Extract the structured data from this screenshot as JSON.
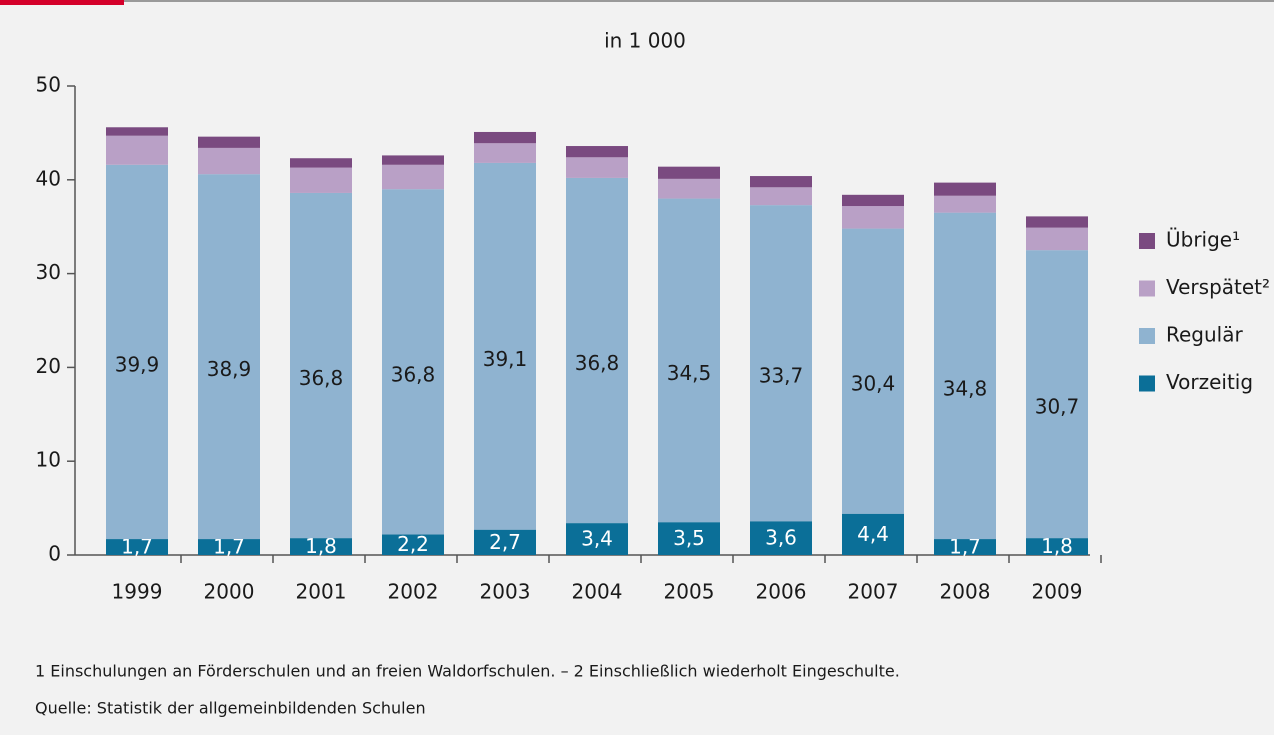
{
  "chart_data": {
    "type": "stacked_bar",
    "title": "in 1 000",
    "categories": [
      "1999",
      "2000",
      "2001",
      "2002",
      "2003",
      "2004",
      "2005",
      "2006",
      "2007",
      "2008",
      "2009"
    ],
    "series": [
      {
        "name": "Vorzeitig",
        "color": "#0b6f98",
        "values": [
          1.7,
          1.7,
          1.8,
          2.2,
          2.7,
          3.4,
          3.5,
          3.6,
          4.4,
          1.7,
          1.8
        ],
        "value_labels": [
          "1,7",
          "1,7",
          "1,8",
          "2,2",
          "2,7",
          "3,4",
          "3,5",
          "3,6",
          "4,4",
          "1,7",
          "1,8"
        ]
      },
      {
        "name": "Regulär",
        "color": "#8fb3d0",
        "values": [
          39.9,
          38.9,
          36.8,
          36.8,
          39.1,
          36.8,
          34.5,
          33.7,
          30.4,
          34.8,
          30.7
        ],
        "value_labels": [
          "39,9",
          "38,9",
          "36,8",
          "36,8",
          "39,1",
          "36,8",
          "34,5",
          "33,7",
          "30,4",
          "34,8",
          "30,7"
        ]
      },
      {
        "name": "Verspätet²",
        "color": "#b9a0c6",
        "values": [
          3.1,
          2.8,
          2.7,
          2.6,
          2.1,
          2.2,
          2.1,
          1.9,
          2.4,
          1.8,
          2.4
        ]
      },
      {
        "name": "Übrige¹",
        "color": "#7a4a80",
        "values": [
          0.9,
          1.2,
          1.0,
          1.0,
          1.2,
          1.2,
          1.3,
          1.2,
          1.2,
          1.4,
          1.2
        ]
      }
    ],
    "ylim": [
      0,
      50
    ],
    "yticks": [
      0,
      10,
      20,
      30,
      40,
      50
    ],
    "footnote": "1 Einschulungen an Förderschulen und an freien Waldorfschulen. – 2 Einschließlich wiederholt Eingeschulte.",
    "source": "Quelle: Statistik der allgemeinbildenden Schulen"
  }
}
